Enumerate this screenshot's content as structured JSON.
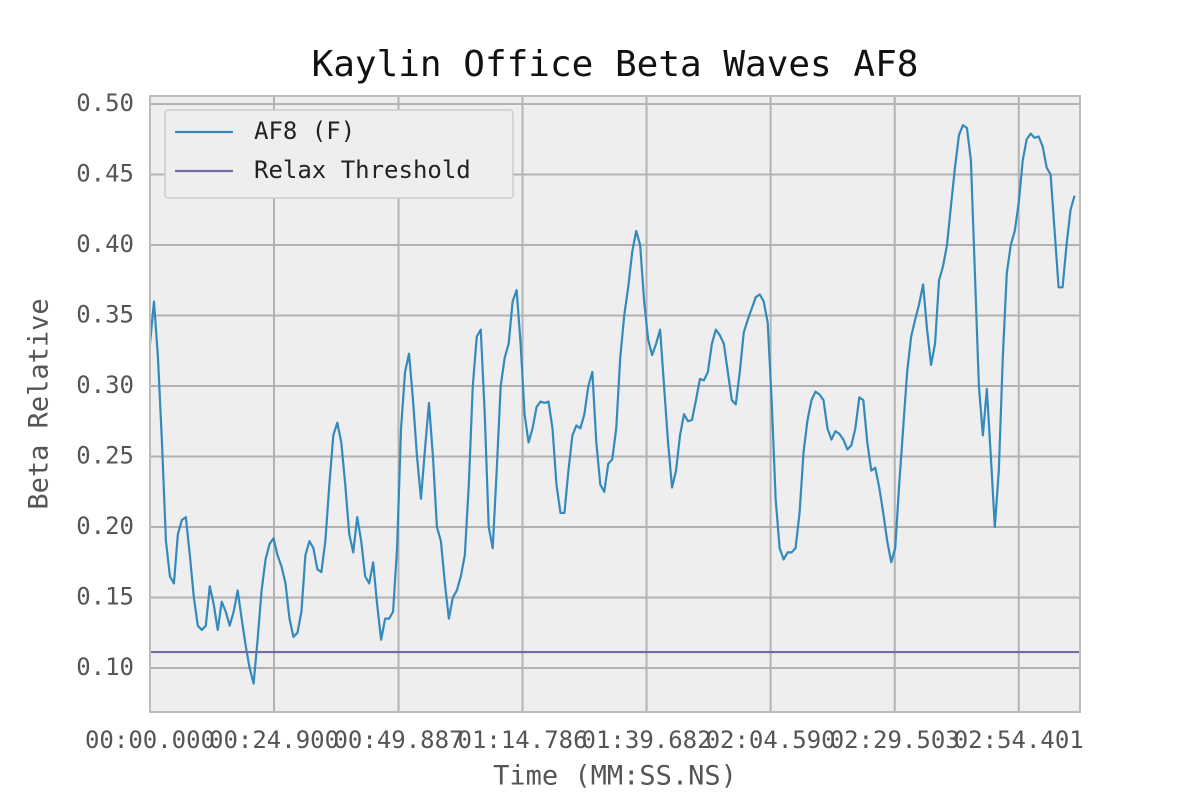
{
  "chart_data": {
    "type": "line",
    "title": "Kaylin Office Beta Waves AF8",
    "x_label": "Time (MM:SS.NS)",
    "y_label": "Beta Relative",
    "xlim": [
      0,
      186.7
    ],
    "ylim": [
      0.0688,
      0.5057
    ],
    "xticks": [
      {
        "value": 0,
        "label": "00:00.000"
      },
      {
        "value": 24.9,
        "label": "00:24.900"
      },
      {
        "value": 49.887,
        "label": "00:49.887"
      },
      {
        "value": 74.786,
        "label": "01:14.786"
      },
      {
        "value": 99.682,
        "label": "01:39.682"
      },
      {
        "value": 124.59,
        "label": "02:04.590"
      },
      {
        "value": 149.503,
        "label": "02:29.503"
      },
      {
        "value": 174.401,
        "label": "02:54.401"
      }
    ],
    "yticks": [
      {
        "value": 0.1,
        "label": "0.10"
      },
      {
        "value": 0.15,
        "label": "0.15"
      },
      {
        "value": 0.2,
        "label": "0.20"
      },
      {
        "value": 0.25,
        "label": "0.25"
      },
      {
        "value": 0.3,
        "label": "0.30"
      },
      {
        "value": 0.35,
        "label": "0.35"
      },
      {
        "value": 0.4,
        "label": "0.40"
      },
      {
        "value": 0.45,
        "label": "0.45"
      },
      {
        "value": 0.5,
        "label": "0.50"
      }
    ],
    "grid": true,
    "legend": "upper left",
    "series": [
      {
        "name": "AF8 (F)",
        "color": "#348abd",
        "x": [
          0,
          0.8,
          1.6,
          2.4,
          3.2,
          4,
          4.8,
          5.6,
          6.4,
          7.2,
          8,
          8.8,
          9.6,
          10.4,
          11.2,
          12,
          12.8,
          13.6,
          14.4,
          15.2,
          16,
          16.8,
          17.6,
          18.4,
          19.2,
          20,
          20.8,
          21.6,
          22.4,
          23.2,
          24,
          24.8,
          25.6,
          26.4,
          27.2,
          28,
          28.8,
          29.6,
          30.4,
          31.2,
          32,
          32.8,
          33.6,
          34.4,
          35.2,
          36,
          36.8,
          37.6,
          38.4,
          39.2,
          40,
          40.8,
          41.6,
          42.4,
          43.2,
          44,
          44.8,
          45.6,
          46.4,
          47.2,
          48,
          48.8,
          49.6,
          50.4,
          51.2,
          52,
          52.8,
          53.6,
          54.4,
          55.2,
          56,
          56.8,
          57.6,
          58.4,
          59.2,
          60,
          60.8,
          61.6,
          62.4,
          63.2,
          64,
          64.8,
          65.6,
          66.4,
          67.2,
          68,
          68.8,
          69.6,
          70.4,
          71.2,
          72,
          72.8,
          73.6,
          74.4,
          75.2,
          76,
          76.8,
          77.6,
          78.4,
          79.2,
          80,
          80.8,
          81.6,
          82.4,
          83.2,
          84,
          84.8,
          85.6,
          86.4,
          87.2,
          88,
          88.8,
          89.6,
          90.4,
          91.2,
          92,
          92.8,
          93.6,
          94.4,
          95.2,
          96,
          96.8,
          97.6,
          98.4,
          99.2,
          100,
          100.8,
          101.6,
          102.4,
          103.2,
          104,
          104.8,
          105.6,
          106.4,
          107.2,
          108,
          108.8,
          109.6,
          110.4,
          111.2,
          112,
          112.8,
          113.6,
          114.4,
          115.2,
          116,
          116.8,
          117.6,
          118.4,
          119.2,
          120,
          120.8,
          121.6,
          122.4,
          123.2,
          124,
          124.8,
          125.6,
          126.4,
          127.2,
          128,
          128.8,
          129.6,
          130.4,
          131.2,
          132,
          132.8,
          133.6,
          134.4,
          135.2,
          136,
          136.8,
          137.6,
          138.4,
          139.2,
          140,
          140.8,
          141.6,
          142.4,
          143.2,
          144,
          144.8,
          145.6,
          146.4,
          147.2,
          148,
          148.8,
          149.6,
          150.4,
          151.2,
          152,
          152.8,
          153.6,
          154.4,
          155.2,
          156,
          156.8,
          157.6,
          158.4,
          159.2,
          160,
          160.8,
          161.6,
          162.4,
          163.2,
          164,
          164.8,
          165.6,
          166.4,
          167.2,
          168,
          168.8,
          169.6,
          170.4,
          171.2,
          172,
          172.8,
          173.6,
          174.4,
          175.2,
          176,
          176.8,
          177.6,
          178.4,
          179.2,
          180,
          180.8,
          181.6,
          182.4,
          183.2,
          184,
          184.8,
          185.6
        ],
        "values": [
          0.33,
          0.36,
          0.32,
          0.26,
          0.19,
          0.165,
          0.16,
          0.195,
          0.205,
          0.207,
          0.18,
          0.15,
          0.13,
          0.127,
          0.13,
          0.158,
          0.145,
          0.127,
          0.147,
          0.14,
          0.13,
          0.14,
          0.155,
          0.135,
          0.116,
          0.1,
          0.089,
          0.12,
          0.155,
          0.177,
          0.188,
          0.192,
          0.18,
          0.172,
          0.16,
          0.135,
          0.122,
          0.125,
          0.14,
          0.18,
          0.19,
          0.185,
          0.17,
          0.168,
          0.19,
          0.23,
          0.265,
          0.274,
          0.26,
          0.23,
          0.195,
          0.182,
          0.207,
          0.19,
          0.165,
          0.16,
          0.175,
          0.145,
          0.12,
          0.135,
          0.135,
          0.14,
          0.185,
          0.27,
          0.31,
          0.323,
          0.29,
          0.25,
          0.22,
          0.255,
          0.288,
          0.25,
          0.2,
          0.19,
          0.16,
          0.135,
          0.15,
          0.155,
          0.165,
          0.18,
          0.23,
          0.3,
          0.335,
          0.34,
          0.28,
          0.2,
          0.185,
          0.24,
          0.3,
          0.32,
          0.33,
          0.36,
          0.368,
          0.33,
          0.28,
          0.26,
          0.27,
          0.285,
          0.289,
          0.288,
          0.289,
          0.27,
          0.23,
          0.21,
          0.21,
          0.24,
          0.265,
          0.272,
          0.27,
          0.28,
          0.3,
          0.31,
          0.26,
          0.23,
          0.225,
          0.245,
          0.248,
          0.27,
          0.32,
          0.35,
          0.37,
          0.395,
          0.41,
          0.4,
          0.36,
          0.333,
          0.322,
          0.33,
          0.34,
          0.3,
          0.26,
          0.228,
          0.24,
          0.265,
          0.28,
          0.275,
          0.276,
          0.29,
          0.305,
          0.304,
          0.31,
          0.33,
          0.34,
          0.336,
          0.33,
          0.31,
          0.29,
          0.287,
          0.31,
          0.338,
          0.347,
          0.355,
          0.363,
          0.365,
          0.36,
          0.345,
          0.29,
          0.22,
          0.185,
          0.177,
          0.182,
          0.182,
          0.185,
          0.21,
          0.253,
          0.276,
          0.29,
          0.296,
          0.294,
          0.29,
          0.27,
          0.262,
          0.268,
          0.266,
          0.262,
          0.255,
          0.258,
          0.27,
          0.292,
          0.29,
          0.26,
          0.24,
          0.242,
          0.228,
          0.21,
          0.19,
          0.175,
          0.185,
          0.23,
          0.27,
          0.31,
          0.335,
          0.347,
          0.358,
          0.372,
          0.34,
          0.315,
          0.33,
          0.375,
          0.385,
          0.4,
          0.428,
          0.455,
          0.478,
          0.485,
          0.483,
          0.46,
          0.38,
          0.3,
          0.265,
          0.298,
          0.25,
          0.2,
          0.24,
          0.32,
          0.38,
          0.4,
          0.41,
          0.43,
          0.46,
          0.475,
          0.479,
          0.476,
          0.477,
          0.47,
          0.455,
          0.45,
          0.41,
          0.37,
          0.37,
          0.4,
          0.425,
          0.435
        ]
      },
      {
        "name": "Relax Threshold",
        "color": "#7a68a6",
        "value": 0.1113
      }
    ]
  }
}
